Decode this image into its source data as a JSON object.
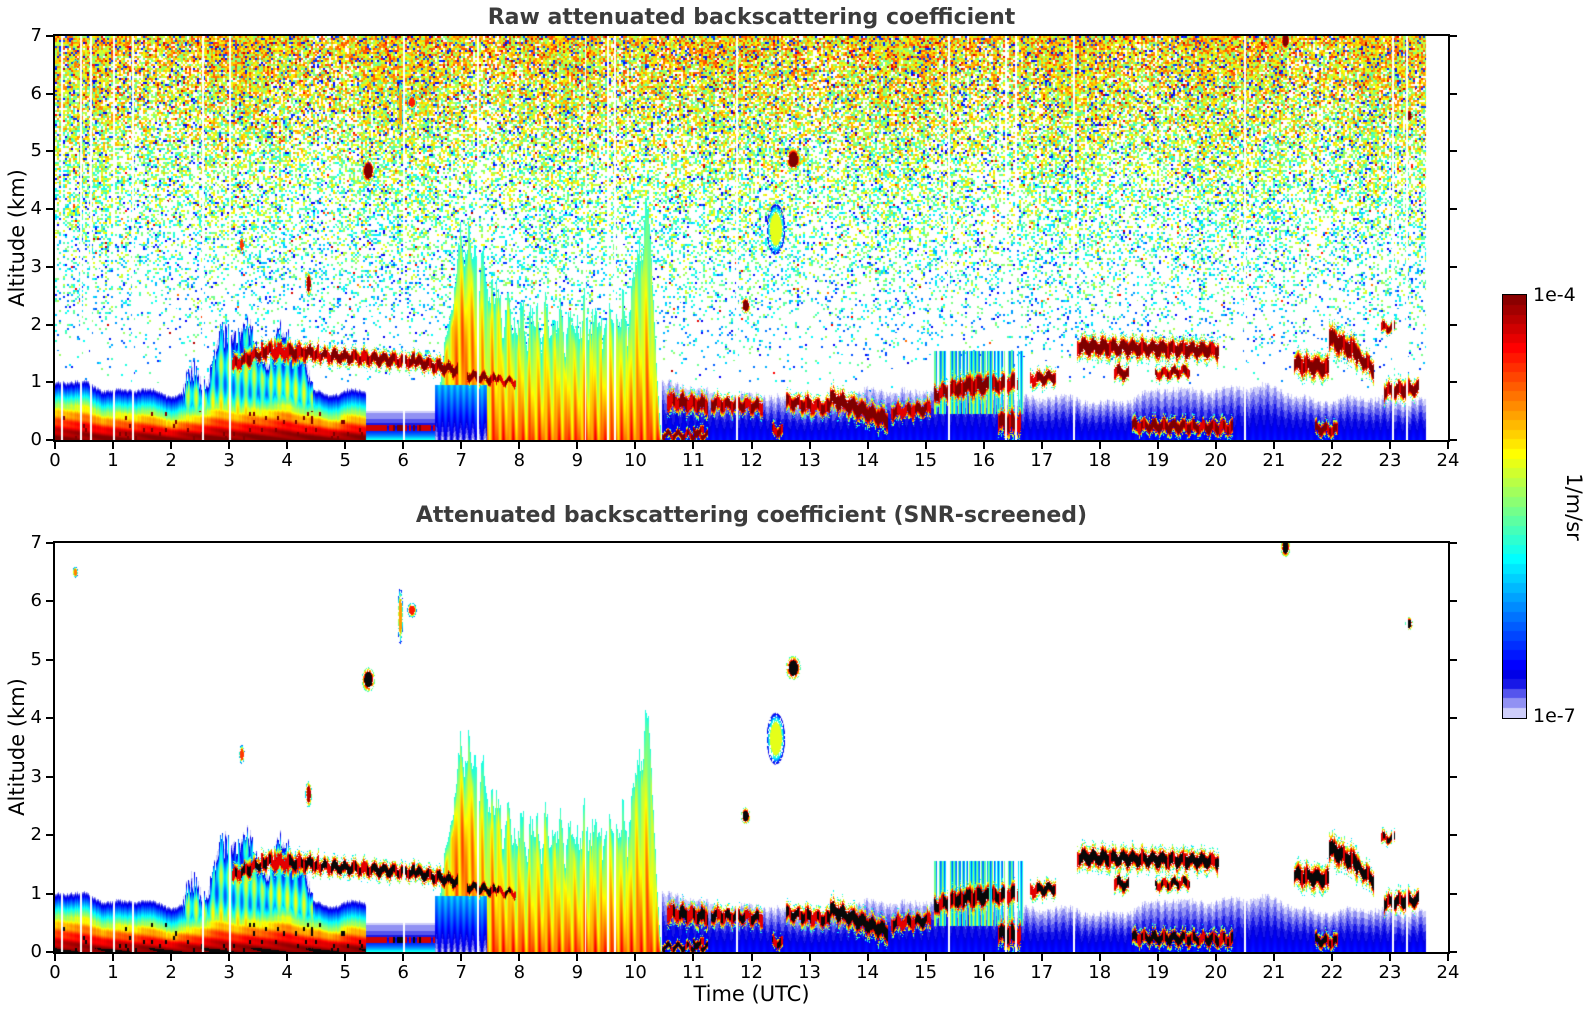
{
  "panels": [
    {
      "id": "raw",
      "title": "Raw attenuated backscattering coefficient",
      "ylabel": "Altitude (km)",
      "screened": false
    },
    {
      "id": "screened",
      "title": "Attenuated backscattering coefficient (SNR-screened)",
      "ylabel": "Altitude (km)",
      "screened": true
    }
  ],
  "axes": {
    "x": {
      "label": "Time (UTC)",
      "min": 0,
      "max": 24,
      "tick_labels": [
        "0",
        "1",
        "2",
        "3",
        "4",
        "5",
        "6",
        "7",
        "8",
        "9",
        "10",
        "11",
        "12",
        "13",
        "14",
        "15",
        "16",
        "17",
        "18",
        "19",
        "20",
        "21",
        "22",
        "23",
        "24"
      ]
    },
    "y": {
      "label": "Altitude (km)",
      "min": 0,
      "max": 7,
      "tick_labels": [
        "0",
        "1",
        "2",
        "3",
        "4",
        "5",
        "6",
        "7"
      ]
    }
  },
  "colorbar": {
    "max_label": "1e-4",
    "min_label": "1e-7",
    "units": "1/m/sr",
    "vmin": 1e-07,
    "vmax": 0.0001,
    "scale": "log10",
    "colormap": "jet",
    "steps": 44,
    "note": "values below threshold fade stepwise to white; saturated returns plot black in SNR-screened panel"
  },
  "chart_data": {
    "type": "heatmap",
    "x": {
      "label": "Time (UTC)",
      "range": [
        0,
        24
      ],
      "units": "hours"
    },
    "y": {
      "label": "Altitude (km)",
      "range": [
        0,
        7
      ]
    },
    "value": {
      "units": "1/m/sr",
      "scale": "log10",
      "range": [
        1e-07,
        0.0001
      ]
    },
    "data_end_time": 23.62,
    "gap_times": [
      0.12,
      0.45,
      0.62,
      1.02,
      1.35,
      2.55,
      3.02,
      6.02,
      7.28,
      9.14,
      9.52,
      9.65,
      11.75,
      15.4,
      16.38,
      16.55,
      17.55,
      20.5,
      23.05,
      23.3
    ],
    "features": {
      "surface_strong": {
        "t": [
          0,
          5.35
        ],
        "top_km": 0.55,
        "desc": "strong red aerosol layer ~1e-4 near ground, rainbow fade above"
      },
      "surface_weak": {
        "t": [
          5.35,
          6.55
        ],
        "line_km": 0.21,
        "desc": "weak residual layer with thin strong line"
      },
      "surface_blue": {
        "t": [
          10.45,
          23.62
        ],
        "top_km": 0.9,
        "desc": "weak blue layer ~1e-6 fading stepwise to white by ~0.9 km"
      },
      "plume": {
        "t": [
          2.2,
          4.6
        ],
        "top_km": 1.8,
        "desc": "rising convective aerosol plumes with orange arcs 1.2-1.9 km"
      },
      "storm": {
        "t": [
          6.55,
          10.45
        ],
        "core_top_km": 3.4,
        "secondary_top_time": 10.18,
        "secondary_top_km": 3.7,
        "shadow_until": 7.45,
        "desc": "precipitating cloud system: orange core 6.6-7.4 UTC, yellow-green fallstreaks to 10.4 UTC"
      },
      "virga": [
        [
          15.15,
          16.68,
          0.45,
          1.55,
          0.45
        ]
      ],
      "cloud_streaks": [
        [
          3.05,
          3.55,
          1.3,
          1.5,
          0.14,
          0.5
        ],
        [
          3.55,
          4.55,
          1.55,
          1.5,
          0.15,
          0.55
        ],
        [
          4.55,
          6.2,
          1.47,
          1.36,
          0.13,
          0.15
        ],
        [
          6.2,
          6.95,
          1.36,
          1.2,
          0.13,
          0.1
        ],
        [
          7.1,
          7.6,
          1.12,
          1.04,
          0.1,
          0.25
        ],
        [
          7.6,
          7.95,
          1.04,
          1.0,
          0.08,
          0.5
        ],
        [
          10.55,
          11.25,
          0.68,
          0.6,
          0.17,
          0.3
        ],
        [
          11.3,
          12.2,
          0.63,
          0.58,
          0.14,
          0.35
        ],
        [
          12.35,
          12.55,
          0.17,
          0.15,
          0.1,
          0.3
        ],
        [
          12.6,
          13.35,
          0.66,
          0.55,
          0.15,
          0.3
        ],
        [
          13.35,
          14.35,
          0.73,
          0.34,
          0.19,
          0.15
        ],
        [
          14.4,
          15.1,
          0.48,
          0.55,
          0.14,
          0.35
        ],
        [
          15.15,
          15.6,
          0.78,
          0.92,
          0.17,
          0.3
        ],
        [
          15.6,
          16.1,
          0.92,
          0.96,
          0.2,
          0.25
        ],
        [
          16.15,
          16.6,
          0.95,
          1.0,
          0.17,
          0.3
        ],
        [
          16.8,
          17.25,
          1.05,
          1.1,
          0.13,
          0.3
        ],
        [
          17.6,
          20.05,
          1.62,
          1.55,
          0.17,
          0.12
        ],
        [
          18.25,
          18.5,
          1.2,
          1.14,
          0.13,
          0.2
        ],
        [
          18.95,
          19.55,
          1.14,
          1.2,
          0.1,
          0.35
        ],
        [
          21.35,
          21.95,
          1.32,
          1.24,
          0.19,
          0.2
        ],
        [
          21.95,
          22.45,
          1.78,
          1.5,
          0.21,
          0.18
        ],
        [
          22.45,
          22.72,
          1.45,
          1.22,
          0.17,
          0.2
        ],
        [
          22.85,
          23.08,
          1.95,
          1.95,
          0.09,
          0.4
        ],
        [
          22.9,
          23.5,
          0.84,
          0.9,
          0.15,
          0.3
        ],
        [
          21.7,
          22.1,
          0.2,
          0.17,
          0.12,
          0.25
        ],
        [
          18.55,
          20.3,
          0.25,
          0.21,
          0.13,
          0.3
        ],
        [
          16.25,
          16.65,
          0.32,
          0.28,
          0.22,
          0.25
        ],
        [
          11.0,
          11.18,
          0.14,
          0.14,
          0.08,
          0.3
        ],
        [
          10.45,
          11.25,
          0.09,
          0.08,
          0.07,
          0.2
        ]
      ],
      "spots": [
        [
          5.4,
          4.66,
          0.07,
          0.13,
          1.05
        ],
        [
          12.72,
          4.86,
          0.08,
          0.13,
          1.05
        ],
        [
          11.9,
          2.33,
          0.05,
          0.09,
          1.02
        ],
        [
          21.2,
          6.92,
          0.05,
          0.1,
          1.02
        ],
        [
          6.15,
          5.85,
          0.05,
          0.08,
          0.85
        ],
        [
          12.42,
          3.65,
          0.1,
          0.28,
          0.6
        ],
        [
          4.37,
          2.7,
          0.035,
          0.14,
          0.95
        ],
        [
          3.22,
          3.38,
          0.03,
          0.1,
          0.82
        ],
        [
          5.95,
          5.75,
          0.03,
          0.3,
          0.72
        ],
        [
          0.35,
          6.5,
          0.03,
          0.06,
          0.75
        ],
        [
          23.33,
          5.62,
          0.04,
          0.07,
          1.02
        ]
      ],
      "noise": {
        "panel": "raw only",
        "desc": "range-amplified solar/background noise speckle: dense yellow-green above ~4.5 km, cyan-blue 2-4.5 km, sparse blue dots below 2 km"
      }
    }
  }
}
